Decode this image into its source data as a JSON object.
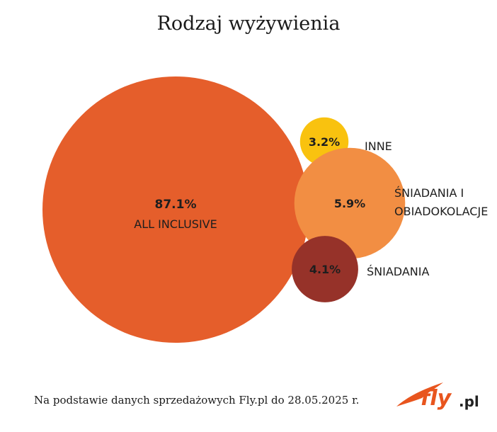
{
  "chart_data": {
    "type": "bubble",
    "title": "Rodzaj wyżywienia",
    "unit": "%",
    "series": [
      {
        "label": "ALL INCLUSIVE",
        "value": 87.1,
        "value_text": "87.1%",
        "color": "#E55E2B"
      },
      {
        "label": "INNE",
        "value": 3.2,
        "value_text": "3.2%",
        "color": "#F9C20F"
      },
      {
        "label": "ŚNIADANIA I OBIADOKOLACJE",
        "label_lines": [
          "ŚNIADANIA I",
          "OBIADOKOLACJE"
        ],
        "value": 5.9,
        "value_text": "5.9%",
        "color": "#F28E43"
      },
      {
        "label": "ŚNIADANIA",
        "value": 4.1,
        "value_text": "4.1%",
        "color": "#963229"
      }
    ]
  },
  "footnote": "Na podstawie danych sprzedażowych Fly.pl do 28.05.2025 r.",
  "logo": {
    "brand": "fly",
    "suffix": ".pl",
    "colors": {
      "fly": "#E8551E",
      "suffix": "#222222"
    }
  }
}
